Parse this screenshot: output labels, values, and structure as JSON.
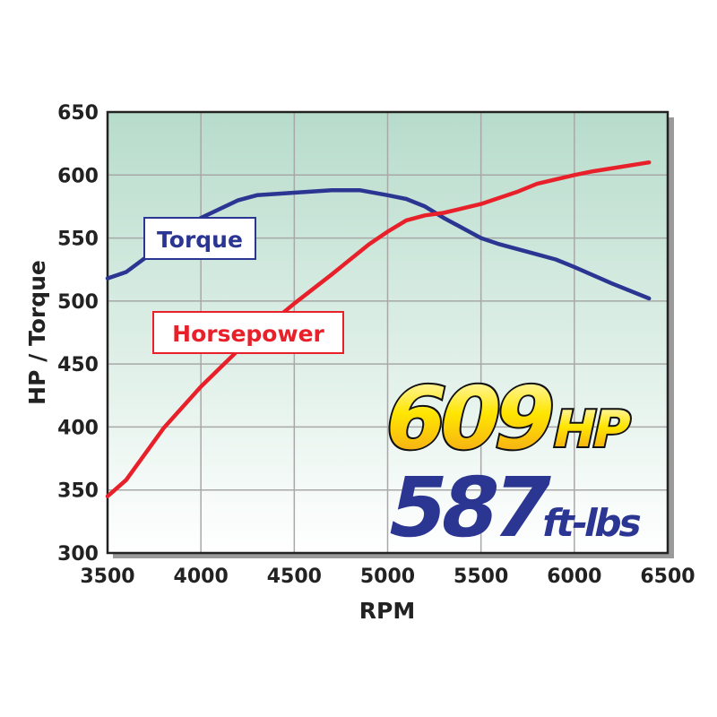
{
  "chart_data": {
    "type": "line",
    "xlabel": "RPM",
    "ylabel": "HP / Torque",
    "xlim": [
      3500,
      6500
    ],
    "ylim": [
      300,
      650
    ],
    "xticks": [
      "3500",
      "4000",
      "4500",
      "5000",
      "5500",
      "6000",
      "6500"
    ],
    "yticks": [
      "300",
      "350",
      "400",
      "450",
      "500",
      "550",
      "600",
      "650"
    ],
    "grid": true,
    "series": [
      {
        "name": "Torque",
        "color": "#2b3592",
        "x": [
          3500,
          3600,
          3800,
          4000,
          4200,
          4300,
          4500,
          4700,
          4850,
          5000,
          5100,
          5200,
          5300,
          5500,
          5600,
          5800,
          5900,
          6000,
          6200,
          6400
        ],
        "y": [
          518,
          523,
          545,
          566,
          580,
          584,
          586,
          588,
          588,
          584,
          581,
          575,
          566,
          550,
          545,
          537,
          533,
          527,
          514,
          502
        ]
      },
      {
        "name": "Horsepower",
        "color": "#e8202a",
        "x": [
          3500,
          3600,
          3800,
          4000,
          4200,
          4500,
          4700,
          4900,
          5000,
          5100,
          5200,
          5300,
          5500,
          5600,
          5700,
          5800,
          6000,
          6100,
          6400
        ],
        "y": [
          345,
          358,
          399,
          432,
          461,
          498,
          521,
          545,
          555,
          564,
          568,
          570,
          577,
          582,
          587,
          593,
          600,
          603,
          610
        ]
      }
    ],
    "annotations": {
      "hp_value": "609",
      "hp_unit": "HP",
      "torque_value": "587",
      "torque_unit": "ft-lbs"
    },
    "colors": {
      "bg_top": "#b7dccb",
      "bg_bottom": "#ffffff",
      "hp_fill_top": "#fffbe0",
      "hp_fill_mid": "#ffe600",
      "hp_fill_bottom": "#f39a1e"
    }
  }
}
